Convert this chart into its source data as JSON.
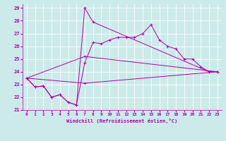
{
  "xlabel": "Windchill (Refroidissement éolien,°C)",
  "xlim": [
    -0.5,
    23.5
  ],
  "ylim": [
    21,
    29.3
  ],
  "yticks": [
    21,
    22,
    23,
    24,
    25,
    26,
    27,
    28,
    29
  ],
  "xticks": [
    0,
    1,
    2,
    3,
    4,
    5,
    6,
    7,
    8,
    9,
    10,
    11,
    12,
    13,
    14,
    15,
    16,
    17,
    18,
    19,
    20,
    21,
    22,
    23
  ],
  "bg_color": "#cceaea",
  "line_color": "#aa00aa",
  "grid_color": "#ffffff",
  "series": [
    {
      "x": [
        0,
        1,
        2,
        3,
        4,
        5,
        6,
        7,
        8,
        9,
        10,
        11,
        12,
        13,
        14,
        15,
        16,
        17,
        18,
        19,
        20,
        21,
        22,
        23
      ],
      "y": [
        23.5,
        22.8,
        22.9,
        22.0,
        22.2,
        21.6,
        21.4,
        24.7,
        26.3,
        26.2,
        26.5,
        26.7,
        26.7,
        26.7,
        27.0,
        27.7,
        26.5,
        26.0,
        25.8,
        25.0,
        25.0,
        24.4,
        24.0,
        24.0
      ]
    },
    {
      "x": [
        0,
        1,
        2,
        3,
        4,
        5,
        6,
        7,
        8,
        22,
        23
      ],
      "y": [
        23.5,
        22.8,
        22.9,
        22.0,
        22.2,
        21.6,
        21.4,
        29.0,
        27.9,
        24.0,
        24.0
      ]
    },
    {
      "x": [
        0,
        7,
        23
      ],
      "y": [
        23.5,
        25.2,
        24.0
      ]
    },
    {
      "x": [
        0,
        7,
        23
      ],
      "y": [
        23.5,
        23.1,
        24.0
      ]
    }
  ]
}
